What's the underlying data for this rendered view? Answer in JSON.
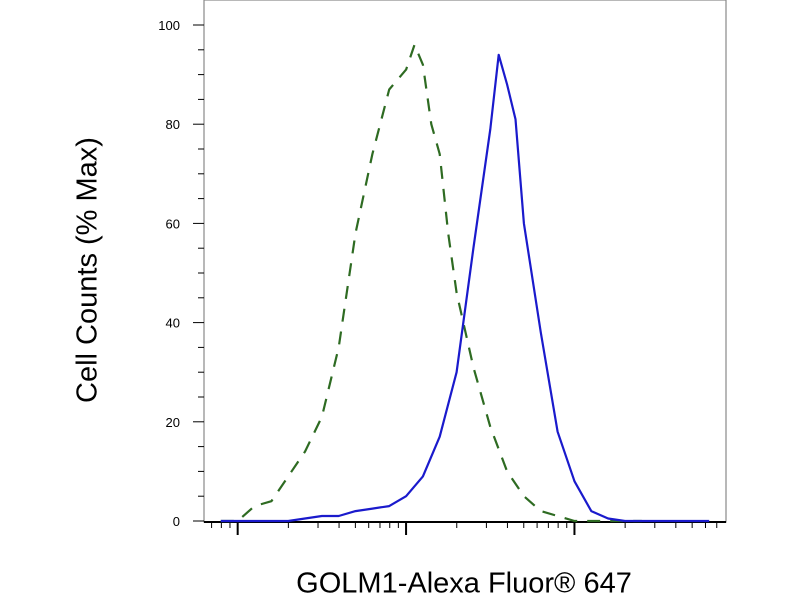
{
  "chart_data": {
    "type": "line",
    "xlabel": "GOLM1-Alexa Fluor® 647",
    "ylabel": "Cell Counts (% Max)",
    "x_scale": "log",
    "x_tick_labels": [],
    "ylim": [
      0,
      100
    ],
    "y_ticks": [
      0,
      20,
      40,
      60,
      80,
      100
    ],
    "grid": false,
    "legend": "none",
    "colors": {
      "isotype": "#2e6b22",
      "golm1": "#1a1acc"
    },
    "series": [
      {
        "style": "dashed",
        "color": "#2e6b22",
        "x": [
          1.9,
          2.0,
          2.1,
          2.2,
          2.3,
          2.4,
          2.5,
          2.6,
          2.7,
          2.8,
          2.9,
          3.0,
          3.05,
          3.1,
          3.15,
          3.2,
          3.25,
          3.3,
          3.4,
          3.5,
          3.6,
          3.7,
          3.8,
          3.9,
          4.0,
          4.1,
          4.2,
          4.3,
          4.4
        ],
        "values": [
          0,
          0,
          3,
          4,
          9,
          14,
          21,
          35,
          58,
          74,
          87,
          91,
          96,
          92,
          80,
          74,
          58,
          46,
          31,
          19,
          10,
          5,
          2,
          1,
          0,
          0,
          0,
          0,
          0
        ]
      },
      {
        "style": "solid",
        "color": "#1a1acc",
        "x": [
          1.9,
          2.0,
          2.1,
          2.2,
          2.3,
          2.4,
          2.5,
          2.6,
          2.7,
          2.8,
          2.9,
          3.0,
          3.1,
          3.2,
          3.3,
          3.4,
          3.5,
          3.55,
          3.6,
          3.65,
          3.7,
          3.8,
          3.9,
          4.0,
          4.1,
          4.2,
          4.3,
          4.4,
          4.5,
          4.6,
          4.7,
          4.8
        ],
        "values": [
          0,
          0,
          0,
          0,
          0,
          0.5,
          1,
          1,
          2,
          2.5,
          3,
          5,
          9,
          17,
          30,
          55,
          79,
          94,
          88,
          81,
          60,
          38,
          18,
          8,
          2,
          0.5,
          0,
          0,
          0,
          0,
          0,
          0
        ]
      }
    ]
  }
}
